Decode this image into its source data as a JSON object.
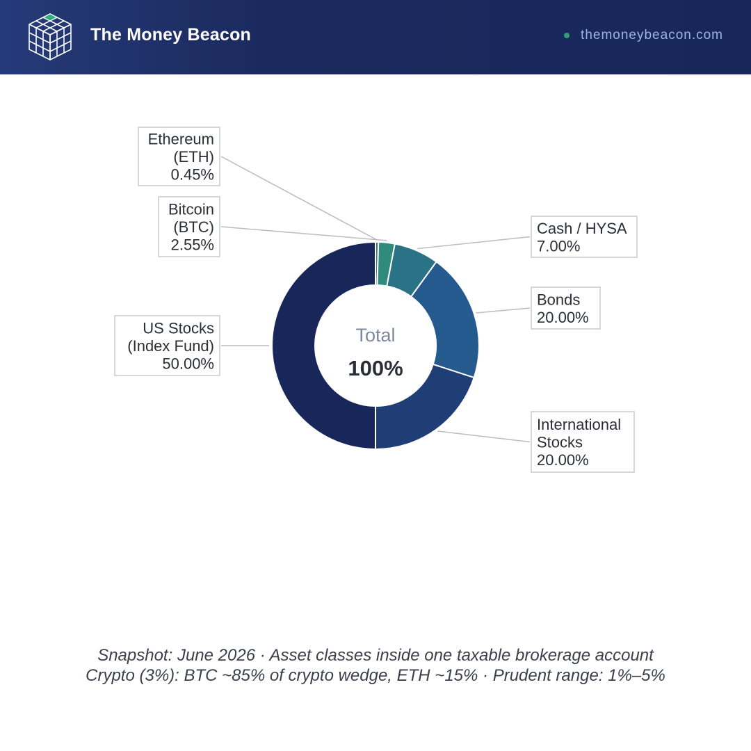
{
  "header": {
    "brand": "The Money Beacon",
    "site": "themoneybeacon.com",
    "colors": {
      "background": "#1b2a5e",
      "accent_dot": "#2f9e77",
      "site_text": "#9fb3e0"
    },
    "icons": {
      "logo": "cube-grid-icon",
      "status": "dot-icon"
    }
  },
  "chart_data": {
    "type": "pie",
    "donut": true,
    "center_label": "Total",
    "center_value": "100%",
    "slices": [
      {
        "label_lines": [
          "Ethereum",
          "(ETH)"
        ],
        "value": 0.45,
        "display": "0.45%",
        "color": "#2c7a6c"
      },
      {
        "label_lines": [
          "Bitcoin",
          "(BTC)"
        ],
        "value": 2.55,
        "display": "2.55%",
        "color": "#2f8c7c"
      },
      {
        "label_lines": [
          "Cash / HYSA"
        ],
        "value": 7.0,
        "display": "7.00%",
        "color": "#2a7386"
      },
      {
        "label_lines": [
          "Bonds"
        ],
        "value": 20.0,
        "display": "20.00%",
        "color": "#245a8e"
      },
      {
        "label_lines": [
          "International",
          "Stocks"
        ],
        "value": 20.0,
        "display": "20.00%",
        "color": "#1f3e75"
      },
      {
        "label_lines": [
          "US Stocks",
          "(Index Fund)"
        ],
        "value": 50.0,
        "display": "50.00%",
        "color": "#18265a"
      }
    ]
  },
  "footer": {
    "line1": "Snapshot: June 2026  ·  Asset classes inside one taxable brokerage account",
    "line2": "Crypto (3%): BTC ~85% of crypto wedge, ETH ~15%  ·  Prudent range: 1%–5%"
  }
}
